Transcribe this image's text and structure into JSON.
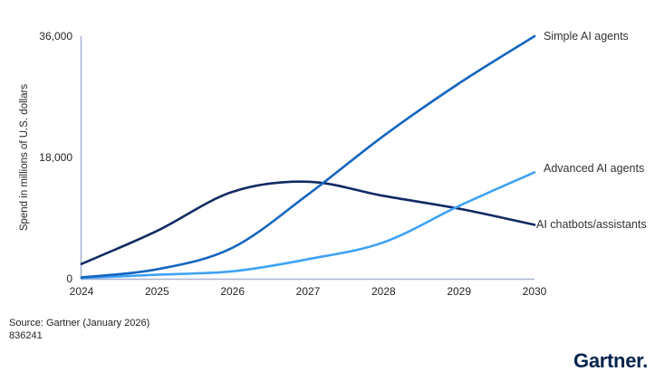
{
  "chart_data": {
    "type": "line",
    "title": "",
    "xlabel": "",
    "ylabel": "Spend in millions of U.S. dollars",
    "x": [
      2024,
      2025,
      2026,
      2027,
      2028,
      2029,
      2030
    ],
    "x_tick_labels": [
      "2024",
      "2025",
      "2026",
      "2027",
      "2028",
      "2029",
      "2030"
    ],
    "y_ticks": [
      {
        "value": 0,
        "label": "0"
      },
      {
        "value": 18000,
        "label": "18,000"
      },
      {
        "value": 36000,
        "label": "36,000"
      }
    ],
    "xlim": [
      2024,
      2030
    ],
    "ylim": [
      0,
      36000
    ],
    "grid": false,
    "legend_position": "labels-at-line-ends-right",
    "axis_color": "#A9B2D3",
    "tick_text_color": "#262626",
    "series": [
      {
        "name": "Simple AI agents",
        "color": "#1565C0",
        "values": [
          200,
          1400,
          4600,
          12500,
          21200,
          29000,
          36000
        ]
      },
      {
        "name": "Advanced AI agents",
        "color": "#3FA2F5",
        "values": [
          100,
          600,
          1100,
          2900,
          5400,
          10800,
          15800
        ]
      },
      {
        "name": "AI chatbots/assistants",
        "color": "#122A63",
        "values": [
          2200,
          7100,
          12900,
          14400,
          12300,
          10400,
          8000
        ]
      }
    ]
  },
  "footer": {
    "source_line": "Source: Gartner (January 2026)",
    "document_id": "836241",
    "logo_text": "Gartner."
  }
}
